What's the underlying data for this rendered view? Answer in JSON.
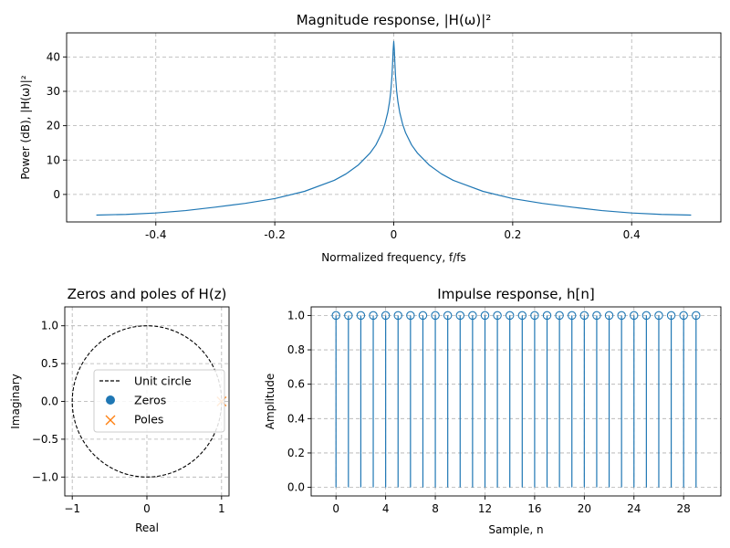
{
  "colors": {
    "series": "#1f77b4",
    "poles": "#ff7f0e",
    "grid": "#b0b0b0",
    "axis": "#000000"
  },
  "chart_data": [
    {
      "id": "magnitude",
      "type": "line",
      "title": "Magnitude response, |H(ω)|²",
      "xlabel": "Normalized frequency, f/fs",
      "ylabel": "Power (dB), |H(ω)|²",
      "xlim": [
        -0.55,
        0.55
      ],
      "ylim": [
        -8,
        47
      ],
      "xticks": [
        -0.4,
        -0.2,
        0,
        0.2,
        0.4
      ],
      "xtick_labels": [
        "-0.4",
        "-0.2",
        "0",
        "0.2",
        "0.4"
      ],
      "yticks": [
        0,
        10,
        20,
        30,
        40
      ],
      "ytick_labels": [
        "0",
        "10",
        "20",
        "30",
        "40"
      ],
      "grid": true,
      "series": [
        {
          "name": "|H(ω)|²",
          "x": [
            -0.5,
            -0.45,
            -0.4,
            -0.35,
            -0.3,
            -0.25,
            -0.2,
            -0.15,
            -0.1,
            -0.08,
            -0.06,
            -0.04,
            -0.03,
            -0.02,
            -0.015,
            -0.01,
            -0.007,
            -0.005,
            -0.003,
            -0.002,
            -0.001,
            0,
            0.001,
            0.002,
            0.003,
            0.005,
            0.007,
            0.01,
            0.015,
            0.02,
            0.03,
            0.04,
            0.06,
            0.08,
            0.1,
            0.15,
            0.2,
            0.25,
            0.3,
            0.35,
            0.4,
            0.45,
            0.5
          ],
          "y": [
            -6.0,
            -5.8,
            -5.4,
            -4.7,
            -3.7,
            -2.6,
            -1.2,
            0.9,
            4.1,
            6.0,
            8.5,
            12.0,
            14.4,
            17.9,
            20.4,
            23.9,
            27.0,
            29.9,
            34.4,
            37.9,
            42.0,
            44.5,
            42.0,
            37.9,
            34.4,
            29.9,
            27.0,
            23.9,
            20.4,
            17.9,
            14.4,
            12.0,
            8.5,
            6.0,
            4.1,
            0.9,
            -1.2,
            -2.6,
            -3.7,
            -4.7,
            -5.4,
            -5.8,
            -6.0
          ]
        }
      ]
    },
    {
      "id": "pole-zero",
      "type": "scatter",
      "title": "Zeros and poles of H(z)",
      "xlabel": "Real",
      "ylabel": "Imaginary",
      "xlim": [
        -1.1,
        1.1
      ],
      "ylim": [
        -1.25,
        1.25
      ],
      "xticks": [
        -1,
        0,
        1
      ],
      "xtick_labels": [
        "−1",
        "0",
        "1"
      ],
      "yticks": [
        1.0,
        0.5,
        0.0,
        -0.5,
        -1.0
      ],
      "ytick_labels": [
        "1.0",
        "0.5",
        "0.0",
        "−0.5",
        "−1.0"
      ],
      "grid": true,
      "unit_circle_radius": 1,
      "zeros": [],
      "poles": [
        [
          1.0,
          0.0
        ]
      ],
      "legend": {
        "position": "center",
        "entries": [
          "Unit circle",
          "Zeros",
          "Poles"
        ]
      }
    },
    {
      "id": "impulse",
      "type": "stem",
      "title": "Impulse response, h[n]",
      "xlabel": "Sample, n",
      "ylabel": "Amplitude",
      "xlim": [
        -2,
        31
      ],
      "ylim": [
        -0.05,
        1.05
      ],
      "xticks": [
        0,
        4,
        8,
        12,
        16,
        20,
        24,
        28
      ],
      "xtick_labels": [
        "0",
        "4",
        "8",
        "12",
        "16",
        "20",
        "24",
        "28"
      ],
      "yticks": [
        0.0,
        0.2,
        0.4,
        0.6,
        0.8,
        1.0
      ],
      "ytick_labels": [
        "0.0",
        "0.2",
        "0.4",
        "0.6",
        "0.8",
        "1.0"
      ],
      "grid": true,
      "n": [
        0,
        1,
        2,
        3,
        4,
        5,
        6,
        7,
        8,
        9,
        10,
        11,
        12,
        13,
        14,
        15,
        16,
        17,
        18,
        19,
        20,
        21,
        22,
        23,
        24,
        25,
        26,
        27,
        28,
        29
      ],
      "values": [
        1,
        1,
        1,
        1,
        1,
        1,
        1,
        1,
        1,
        1,
        1,
        1,
        1,
        1,
        1,
        1,
        1,
        1,
        1,
        1,
        1,
        1,
        1,
        1,
        1,
        1,
        1,
        1,
        1,
        1
      ]
    }
  ]
}
